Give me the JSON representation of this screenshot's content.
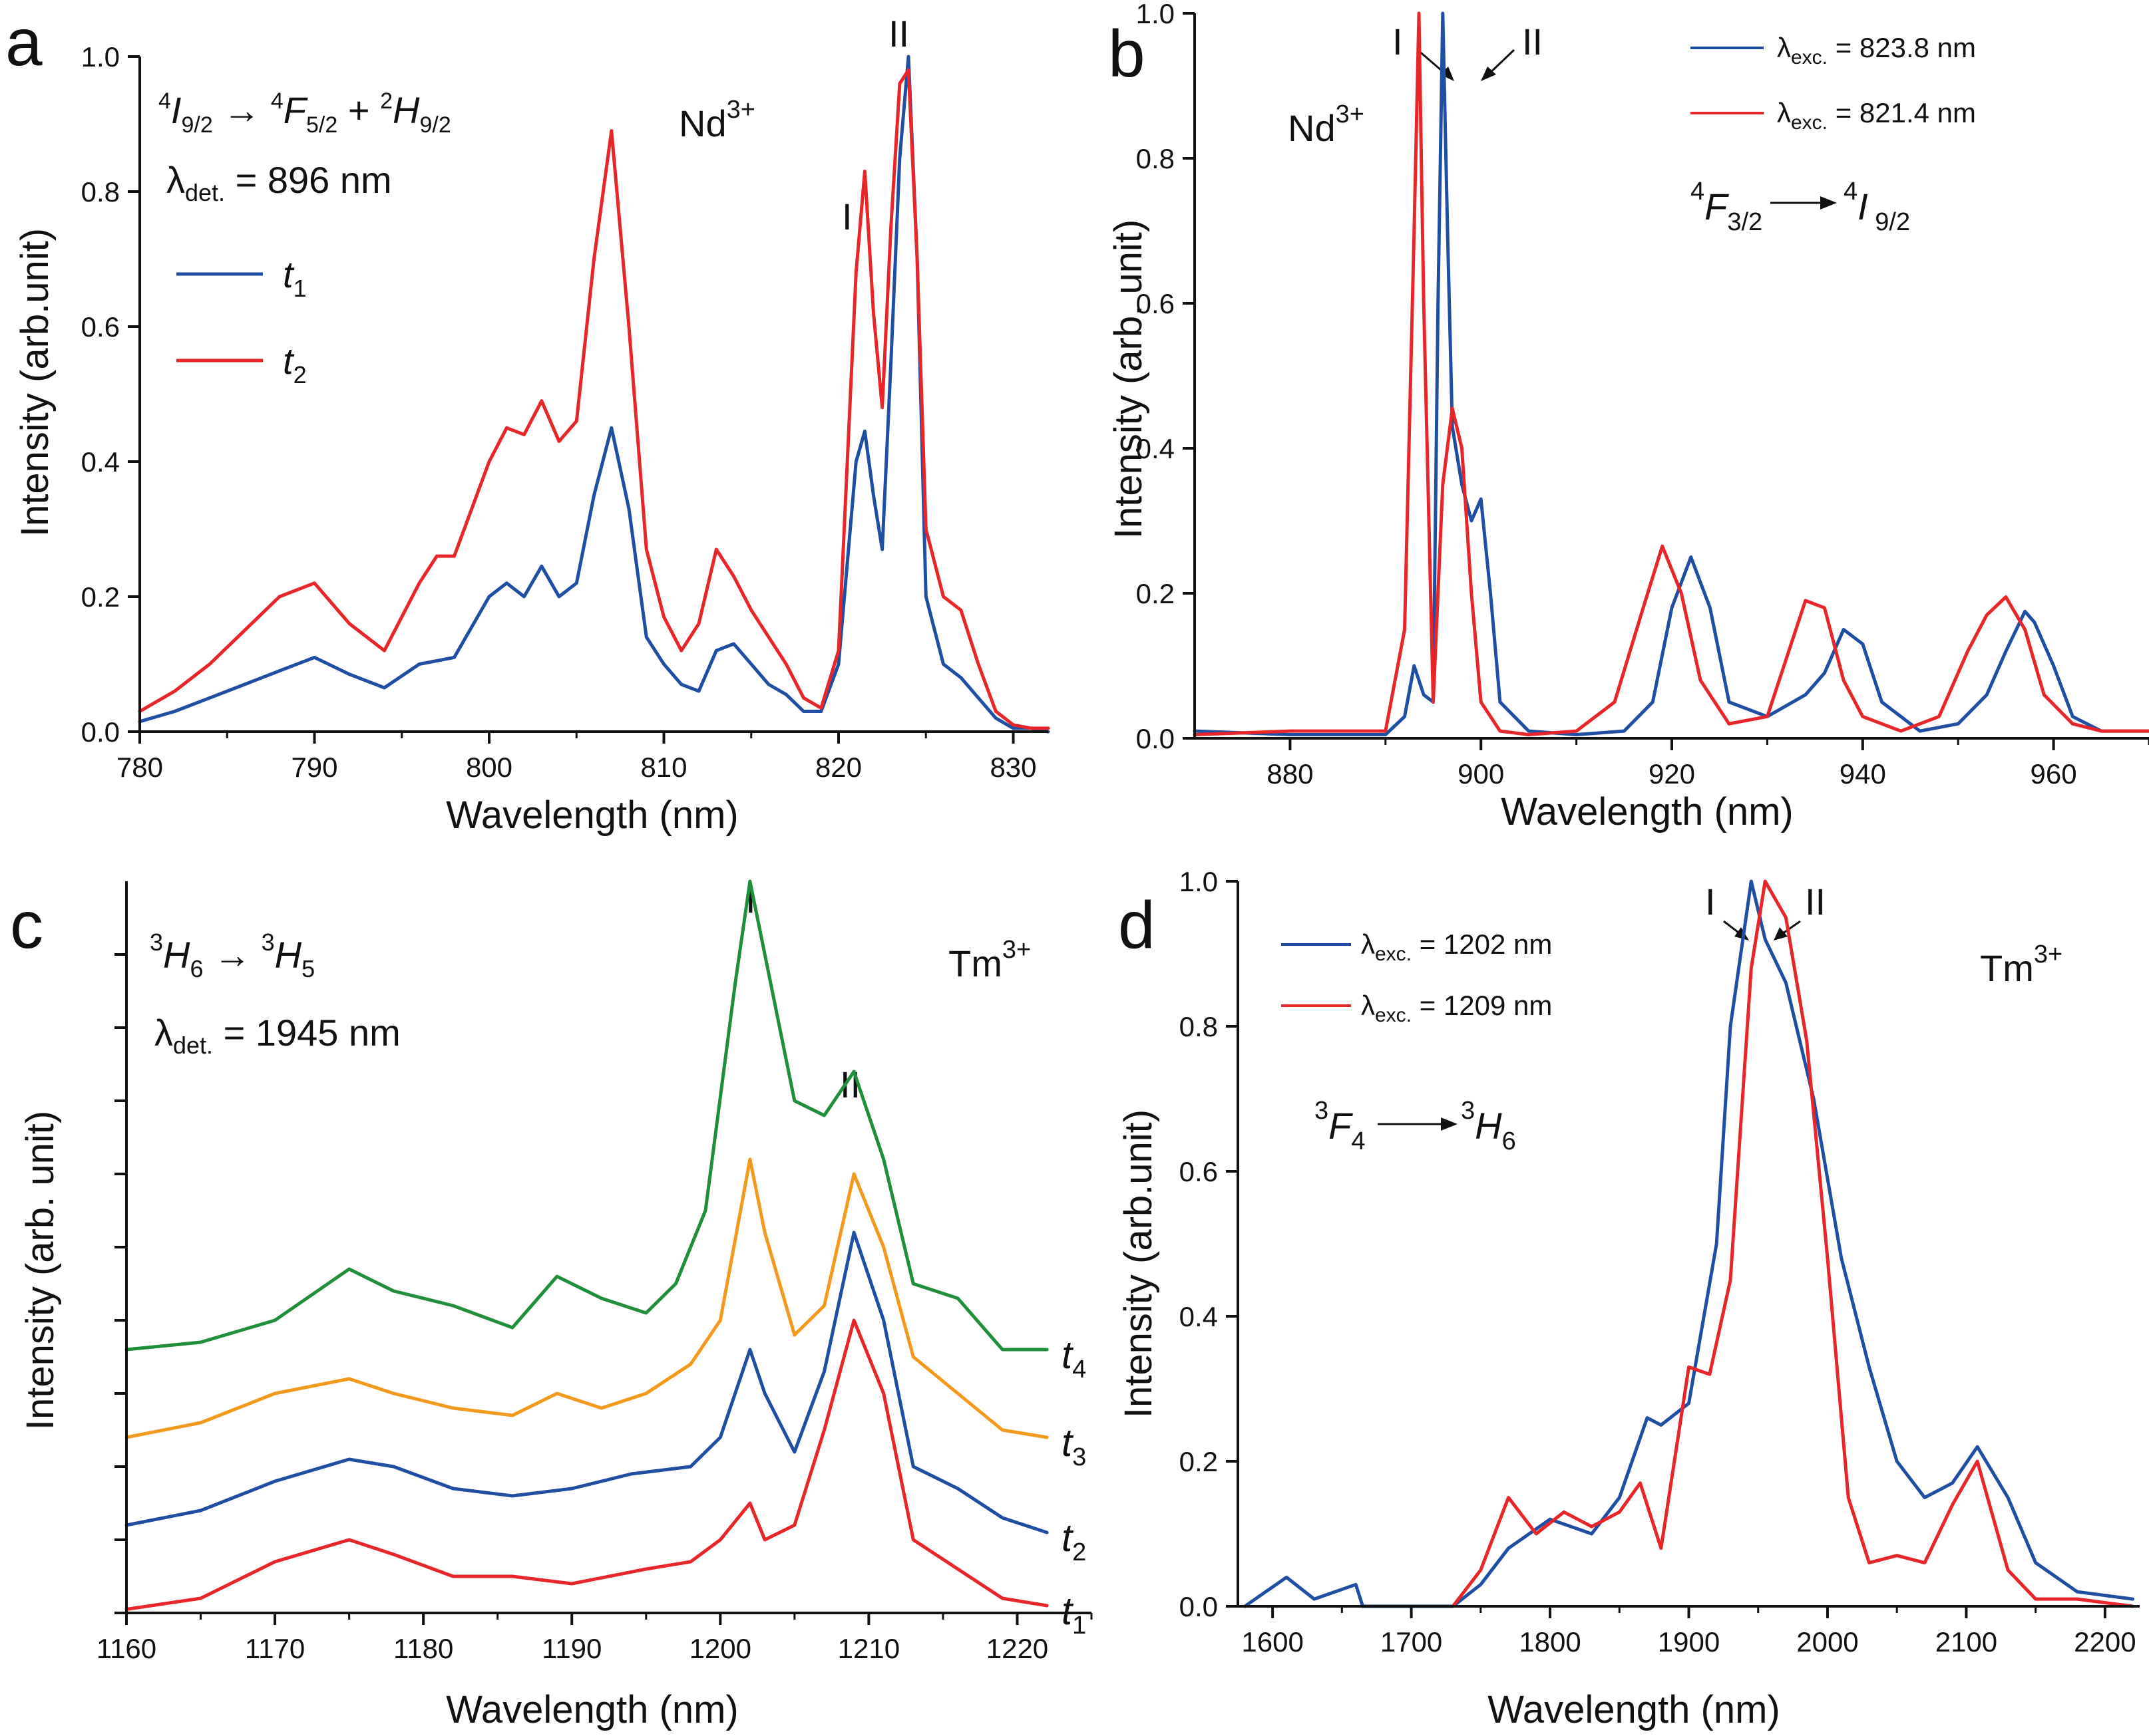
{
  "chart_data": [
    {
      "id": "a",
      "type": "line",
      "panel_label": "a",
      "xlabel": "Wavelength (nm)",
      "ylabel": "Intensity (arb.unit)",
      "xlim": [
        780,
        832
      ],
      "ylim": [
        0,
        1.0
      ],
      "xticks": [
        780,
        790,
        800,
        810,
        820,
        830
      ],
      "yticks": [
        0.0,
        0.2,
        0.4,
        0.6,
        0.8,
        1.0
      ],
      "ytick_labels": [
        "0.0",
        "0.2",
        "0.4",
        "0.6",
        "0.8",
        "1.0"
      ],
      "annotations": {
        "transition": "4I9/2 → 4F5/2 + 2H9/2",
        "detection": "λdet. = 896 nm",
        "ion": "Nd3+",
        "peak_I": "I",
        "peak_II": "II"
      },
      "legend": {
        "position": "upper-left",
        "entries": [
          "t1",
          "t2"
        ]
      },
      "series": [
        {
          "name": "t1",
          "color": "#1f4fa3",
          "x": [
            780,
            782,
            784,
            786,
            788,
            790,
            792,
            794,
            796,
            798,
            800,
            801,
            802,
            803,
            804,
            805,
            806,
            807,
            808,
            809,
            810,
            811,
            812,
            813,
            814,
            815,
            816,
            817,
            818,
            819,
            820,
            821,
            821.5,
            822,
            822.5,
            823,
            823.5,
            824,
            824.5,
            825,
            826,
            827,
            828,
            829,
            830,
            831,
            832
          ],
          "y": [
            0.015,
            0.03,
            0.05,
            0.07,
            0.09,
            0.11,
            0.085,
            0.065,
            0.1,
            0.11,
            0.2,
            0.22,
            0.2,
            0.245,
            0.2,
            0.22,
            0.35,
            0.45,
            0.33,
            0.14,
            0.1,
            0.07,
            0.06,
            0.12,
            0.13,
            0.1,
            0.07,
            0.055,
            0.03,
            0.03,
            0.1,
            0.4,
            0.445,
            0.35,
            0.27,
            0.55,
            0.85,
            1.0,
            0.7,
            0.2,
            0.1,
            0.08,
            0.05,
            0.02,
            0.005,
            0.005,
            0.0
          ]
        },
        {
          "name": "t2",
          "color": "#e8262a",
          "x": [
            780,
            782,
            784,
            786,
            788,
            790,
            792,
            794,
            796,
            797,
            798,
            800,
            801,
            802,
            803,
            804,
            805,
            806,
            807,
            808,
            809,
            810,
            811,
            812,
            813,
            814,
            815,
            816,
            817,
            818,
            819,
            820,
            821,
            821.5,
            822,
            822.5,
            823,
            823.5,
            824,
            824.5,
            825,
            826,
            827,
            828,
            829,
            830,
            831,
            832
          ],
          "y": [
            0.03,
            0.06,
            0.1,
            0.15,
            0.2,
            0.22,
            0.16,
            0.12,
            0.22,
            0.26,
            0.26,
            0.4,
            0.45,
            0.44,
            0.49,
            0.43,
            0.46,
            0.7,
            0.89,
            0.6,
            0.27,
            0.17,
            0.12,
            0.16,
            0.27,
            0.23,
            0.18,
            0.14,
            0.1,
            0.05,
            0.035,
            0.12,
            0.68,
            0.83,
            0.62,
            0.48,
            0.75,
            0.96,
            0.98,
            0.7,
            0.3,
            0.2,
            0.18,
            0.1,
            0.03,
            0.01,
            0.005,
            0.005
          ]
        }
      ]
    },
    {
      "id": "b",
      "type": "line",
      "panel_label": "b",
      "xlabel": "Wavelength (nm)",
      "ylabel": "Intensity (arb. unit)",
      "xlim": [
        870,
        970
      ],
      "ylim": [
        0,
        1.0
      ],
      "xticks": [
        880,
        900,
        920,
        940,
        960
      ],
      "yticks": [
        0.0,
        0.2,
        0.4,
        0.6,
        0.8,
        1.0
      ],
      "ytick_labels": [
        "0.0",
        "0.2",
        "0.4",
        "0.6",
        "0.8",
        "1.0"
      ],
      "annotations": {
        "transition": "4F3/2 → 4I9/2",
        "ion": "Nd3+",
        "peak_I": "I",
        "peak_II": "II"
      },
      "legend": {
        "position": "top-right",
        "entries": [
          "λexc. = 823.8 nm",
          "λexc. = 821.4 nm"
        ]
      },
      "series": [
        {
          "name": "λexc. = 823.8 nm",
          "color": "#1f4fa3",
          "x": [
            870,
            880,
            890,
            892,
            893,
            894,
            895,
            895.5,
            896,
            896.5,
            897,
            898,
            899,
            900,
            901,
            902,
            905,
            910,
            915,
            918,
            920,
            922,
            924,
            926,
            930,
            934,
            936,
            938,
            940,
            942,
            946,
            950,
            953,
            955,
            957,
            958,
            960,
            962,
            965,
            970
          ],
          "y": [
            0.01,
            0.005,
            0.005,
            0.03,
            0.1,
            0.06,
            0.05,
            0.6,
            1.0,
            0.7,
            0.43,
            0.35,
            0.3,
            0.33,
            0.2,
            0.05,
            0.01,
            0.005,
            0.01,
            0.05,
            0.18,
            0.25,
            0.18,
            0.05,
            0.03,
            0.06,
            0.09,
            0.15,
            0.13,
            0.05,
            0.01,
            0.02,
            0.06,
            0.12,
            0.175,
            0.16,
            0.1,
            0.03,
            0.01,
            0.01
          ]
        },
        {
          "name": "λexc. = 821.4 nm",
          "color": "#e8262a",
          "x": [
            870,
            880,
            890,
            892,
            893,
            893.5,
            894,
            895,
            896,
            897,
            898,
            899,
            900,
            902,
            905,
            910,
            914,
            917,
            919,
            921,
            923,
            926,
            930,
            932,
            934,
            936,
            938,
            940,
            944,
            948,
            951,
            953,
            955,
            957,
            959,
            962,
            965,
            970
          ],
          "y": [
            0.005,
            0.01,
            0.01,
            0.15,
            0.7,
            1.0,
            0.6,
            0.05,
            0.35,
            0.455,
            0.4,
            0.2,
            0.05,
            0.01,
            0.005,
            0.01,
            0.05,
            0.18,
            0.265,
            0.2,
            0.08,
            0.02,
            0.03,
            0.11,
            0.19,
            0.18,
            0.08,
            0.03,
            0.01,
            0.03,
            0.12,
            0.17,
            0.195,
            0.15,
            0.06,
            0.02,
            0.01,
            0.01
          ]
        }
      ]
    },
    {
      "id": "c",
      "type": "line",
      "panel_label": "c",
      "xlabel": "Wavelength (nm)",
      "ylabel": "Intensity (arb. unit)",
      "xlim": [
        1160,
        1225
      ],
      "ylim": [
        0,
        1.0
      ],
      "xticks": [
        1160,
        1170,
        1180,
        1190,
        1200,
        1210,
        1220
      ],
      "yticks": [
        0.0,
        0.1,
        0.2,
        0.3,
        0.4,
        0.5,
        0.6,
        0.7,
        0.8,
        0.9
      ],
      "ytick_labels": [],
      "annotations": {
        "transition": "3H6 → 3H5",
        "detection": "λdet. = 1945 nm",
        "ion": "Tm3+",
        "peak_I": "I",
        "peak_II": "II"
      },
      "series": [
        {
          "name": "t1",
          "label": "t1",
          "color": "#e8262a",
          "x": [
            1160,
            1165,
            1170,
            1175,
            1178,
            1182,
            1186,
            1190,
            1195,
            1198,
            1200,
            1202,
            1203,
            1205,
            1207,
            1209,
            1211,
            1213,
            1216,
            1219,
            1222
          ],
          "y": [
            0.005,
            0.02,
            0.07,
            0.1,
            0.08,
            0.05,
            0.05,
            0.04,
            0.06,
            0.07,
            0.1,
            0.15,
            0.1,
            0.12,
            0.25,
            0.4,
            0.3,
            0.1,
            0.06,
            0.02,
            0.01
          ]
        },
        {
          "name": "t2",
          "label": "t2",
          "color": "#1f4fa3",
          "x": [
            1160,
            1165,
            1170,
            1175,
            1178,
            1182,
            1186,
            1190,
            1194,
            1198,
            1200,
            1202,
            1203,
            1205,
            1207,
            1209,
            1211,
            1213,
            1216,
            1219,
            1222
          ],
          "y": [
            0.12,
            0.14,
            0.18,
            0.21,
            0.2,
            0.17,
            0.16,
            0.17,
            0.19,
            0.2,
            0.24,
            0.36,
            0.3,
            0.22,
            0.33,
            0.52,
            0.4,
            0.2,
            0.17,
            0.13,
            0.11
          ]
        },
        {
          "name": "t3",
          "label": "t3",
          "color": "#f39a1e",
          "x": [
            1160,
            1165,
            1170,
            1175,
            1178,
            1182,
            1186,
            1189,
            1192,
            1195,
            1198,
            1200,
            1202,
            1203,
            1205,
            1207,
            1209,
            1211,
            1213,
            1216,
            1219,
            1222
          ],
          "y": [
            0.24,
            0.26,
            0.3,
            0.32,
            0.3,
            0.28,
            0.27,
            0.3,
            0.28,
            0.3,
            0.34,
            0.4,
            0.62,
            0.52,
            0.38,
            0.42,
            0.6,
            0.5,
            0.35,
            0.3,
            0.25,
            0.24
          ]
        },
        {
          "name": "t4",
          "label": "t4",
          "color": "#1f8f3a",
          "x": [
            1160,
            1165,
            1170,
            1175,
            1178,
            1182,
            1186,
            1189,
            1192,
            1195,
            1197,
            1199,
            1201,
            1202,
            1203,
            1205,
            1207,
            1209,
            1211,
            1213,
            1216,
            1219,
            1222
          ],
          "y": [
            0.36,
            0.37,
            0.4,
            0.47,
            0.44,
            0.42,
            0.39,
            0.46,
            0.43,
            0.41,
            0.45,
            0.55,
            0.86,
            1.0,
            0.9,
            0.7,
            0.68,
            0.74,
            0.62,
            0.45,
            0.43,
            0.36,
            0.36
          ]
        }
      ]
    },
    {
      "id": "d",
      "type": "line",
      "panel_label": "d",
      "xlabel": "Wavelength (nm)",
      "ylabel": "Intensity (arb.unit)",
      "xlim": [
        1575,
        2225
      ],
      "ylim": [
        0,
        1.0
      ],
      "xticks": [
        1600,
        1700,
        1800,
        1900,
        2000,
        2100,
        2200
      ],
      "yticks": [
        0.0,
        0.2,
        0.4,
        0.6,
        0.8,
        1.0
      ],
      "ytick_labels": [
        "0.0",
        "0.2",
        "0.4",
        "0.6",
        "0.8",
        "1.0"
      ],
      "annotations": {
        "transition": "3F4 → 3H6",
        "ion": "Tm3+",
        "peak_I": "I",
        "peak_II": "II"
      },
      "legend": {
        "position": "top-left",
        "entries": [
          "λexc. = 1202 nm",
          "λexc. = 1209 nm"
        ]
      },
      "series": [
        {
          "name": "λexc. = 1202 nm",
          "color": "#1f4fa3",
          "x": [
            1580,
            1610,
            1630,
            1660,
            1665,
            1730,
            1750,
            1770,
            1800,
            1830,
            1850,
            1870,
            1880,
            1900,
            1920,
            1930,
            1945,
            1955,
            1970,
            1990,
            2010,
            2030,
            2050,
            2070,
            2090,
            2108,
            2130,
            2150,
            2180,
            2220
          ],
          "y": [
            0.0,
            0.04,
            0.01,
            0.03,
            0.0,
            0.0,
            0.03,
            0.08,
            0.12,
            0.1,
            0.15,
            0.26,
            0.25,
            0.28,
            0.5,
            0.8,
            1.0,
            0.92,
            0.86,
            0.7,
            0.48,
            0.33,
            0.2,
            0.15,
            0.17,
            0.22,
            0.15,
            0.06,
            0.02,
            0.01
          ]
        },
        {
          "name": "λexc. = 1209 nm",
          "color": "#e8262a",
          "x": [
            1730,
            1750,
            1770,
            1790,
            1810,
            1830,
            1850,
            1865,
            1880,
            1900,
            1915,
            1930,
            1945,
            1955,
            1970,
            1985,
            2000,
            2015,
            2030,
            2050,
            2070,
            2090,
            2108,
            2130,
            2150,
            2180,
            2220
          ],
          "y": [
            0.0,
            0.05,
            0.15,
            0.1,
            0.13,
            0.11,
            0.13,
            0.17,
            0.08,
            0.33,
            0.32,
            0.45,
            0.88,
            1.0,
            0.95,
            0.78,
            0.48,
            0.15,
            0.06,
            0.07,
            0.06,
            0.14,
            0.2,
            0.05,
            0.01,
            0.01,
            0.0
          ]
        }
      ]
    }
  ]
}
